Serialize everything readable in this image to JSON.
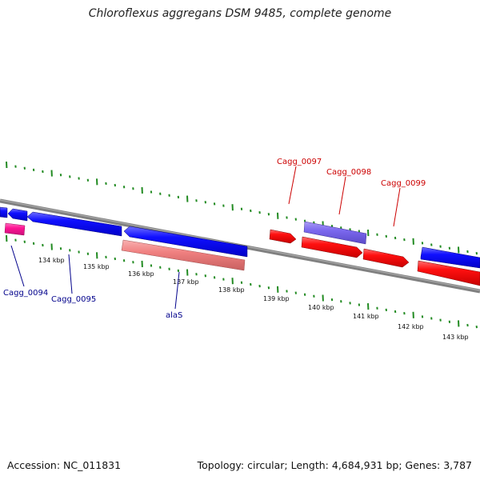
{
  "title": "Chloroflexus aggregans DSM 9485, complete genome",
  "footer": {
    "accession": "Accession: NC_011831",
    "summary": "Topology: circular; Length: 4,684,931 bp; Genes: 3,787"
  },
  "scale_labels": [
    "134 kbp",
    "135 kbp",
    "136 kbp",
    "137 kbp",
    "138 kbp",
    "139 kbp",
    "140 kbp",
    "141 kbp",
    "142 kbp",
    "143 kbp"
  ],
  "gene_labels": [
    {
      "text": "Cagg_0094",
      "color": "#00008b"
    },
    {
      "text": "Cagg_0095",
      "color": "#00008b"
    },
    {
      "text": "alaS",
      "color": "#00008b"
    },
    {
      "text": "Cagg_0097",
      "color": "#cc0000"
    },
    {
      "text": "Cagg_0098",
      "color": "#cc0000"
    },
    {
      "text": "Cagg_0099",
      "color": "#cc0000"
    }
  ],
  "colors": {
    "forward_cds": "#ff0000",
    "reverse_cds": "#0000ff",
    "forward_other": "#7b68ee",
    "reverse_rna": "#f08080",
    "reverse_misc": "#ff1493",
    "tick": "#228b22",
    "backbone": "#808080"
  }
}
